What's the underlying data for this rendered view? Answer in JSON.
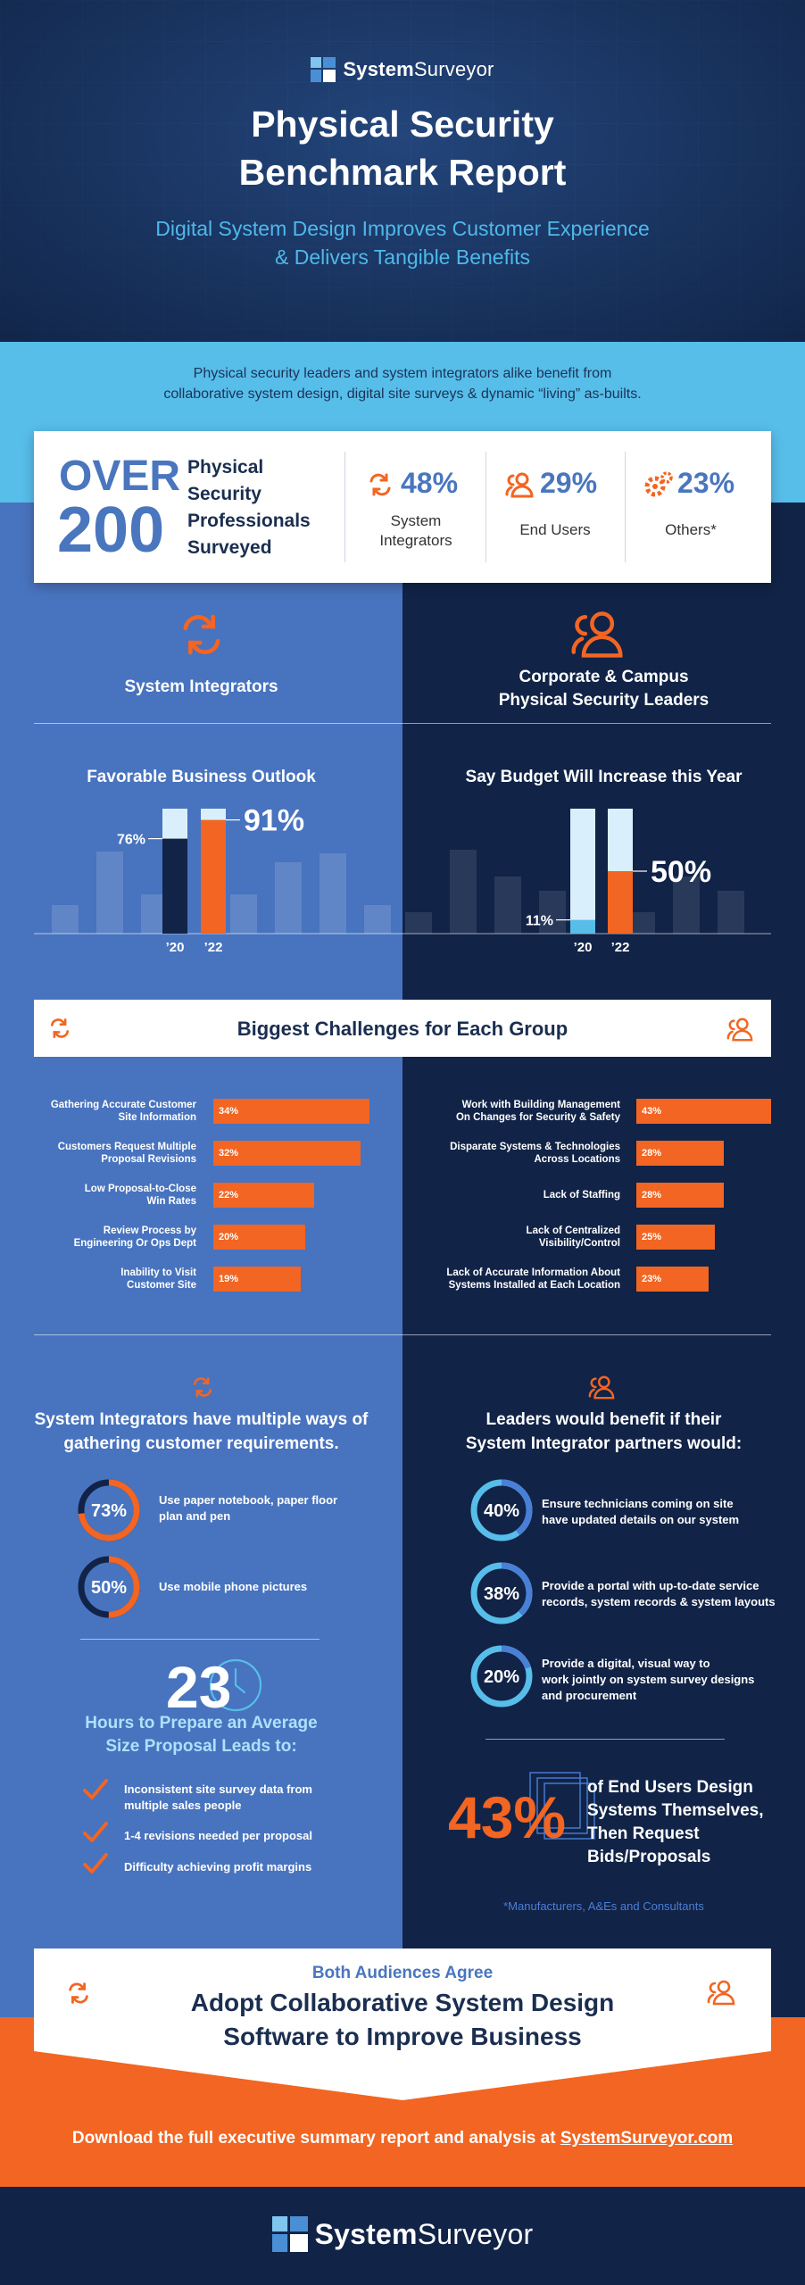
{
  "header": {
    "brand_bold": "System",
    "brand_light": "Surveyor",
    "title_line1": "Physical Security",
    "title_line2": "Benchmark Report",
    "subtitle_line1": "Digital System Design Improves Customer Experience",
    "subtitle_line2": "& Delivers Tangible Benefits"
  },
  "intro": {
    "line1": "Physical security leaders and system integrators alike benefit from",
    "line2": "collaborative system design, digital site surveys & dynamic “living” as-builts."
  },
  "stats": {
    "over": "OVER",
    "count": "200",
    "desc": [
      "Physical",
      "Security",
      "Professionals",
      "Surveyed"
    ],
    "items": [
      {
        "pct": "48%",
        "label1": "System",
        "label2": "Integrators",
        "icon": "arrows-cycle-icon"
      },
      {
        "pct": "29%",
        "label1": "End Users",
        "label2": "",
        "icon": "users-icon"
      },
      {
        "pct": "23%",
        "label1": "Others*",
        "label2": "",
        "icon": "gears-icon"
      }
    ]
  },
  "groups": {
    "left": "System Integrators",
    "right_line1": "Corporate & Campus",
    "right_line2": "Physical Security Leaders"
  },
  "colors": {
    "orange": "#f26522",
    "navy": "#112347",
    "blue": "#4873be",
    "light_blue": "#57bde9",
    "pale": "#d9f0fc"
  },
  "chart_data": [
    {
      "type": "bar",
      "title": "Favorable Business Outlook",
      "categories": [
        "’20",
        "’22"
      ],
      "values": [
        76,
        91
      ],
      "labels": [
        "76%",
        "91%"
      ],
      "ylim": [
        0,
        100
      ]
    },
    {
      "type": "bar",
      "title": "Say Budget Will Increase this Year",
      "categories": [
        "’20",
        "’22"
      ],
      "values": [
        11,
        50
      ],
      "labels": [
        "11%",
        "50%"
      ],
      "ylim": [
        0,
        100
      ]
    },
    {
      "type": "bar",
      "title": "Biggest Challenges for Each Group",
      "group": "System Integrators",
      "categories": [
        "Gathering Accurate Customer Site Information",
        "Customers Request Multiple Proposal Revisions",
        "Low Proposal-to-Close Win Rates",
        "Review Process by Engineering Or Ops Dept",
        "Inability to Visit Customer Site"
      ],
      "values": [
        34,
        32,
        22,
        20,
        19
      ]
    },
    {
      "type": "bar",
      "title": "Biggest Challenges for Each Group",
      "group": "Corporate & Campus Physical Security Leaders",
      "categories": [
        "Work with Building Management On Changes for Security & Safety",
        "Disparate Systems & Technologies Across Locations",
        "Lack of Staffing",
        "Lack of Centralized Visibility/Control",
        "Lack of Accurate Information About Systems Installed at Each Location"
      ],
      "values": [
        43,
        28,
        28,
        25,
        23
      ]
    }
  ],
  "challenges": {
    "title": "Biggest Challenges for Each Group",
    "left": [
      {
        "l1": "Gathering Accurate Customer",
        "l2": "Site Information",
        "v": "34%"
      },
      {
        "l1": "Customers Request Multiple",
        "l2": "Proposal Revisions",
        "v": "32%"
      },
      {
        "l1": "Low Proposal-to-Close",
        "l2": "Win Rates",
        "v": "22%"
      },
      {
        "l1": "Review Process by",
        "l2": "Engineering Or Ops Dept",
        "v": "20%"
      },
      {
        "l1": "Inability to Visit",
        "l2": "Customer Site",
        "v": "19%"
      }
    ],
    "right": [
      {
        "l1": "Work with Building Management",
        "l2": "On Changes for Security & Safety",
        "v": "43%"
      },
      {
        "l1": "Disparate Systems & Technologies",
        "l2": "Across Locations",
        "v": "28%"
      },
      {
        "l1": "Lack of Staffing",
        "l2": "",
        "v": "28%"
      },
      {
        "l1": "Lack of Centralized",
        "l2": "Visibility/Control",
        "v": "25%"
      },
      {
        "l1": "Lack of Accurate Information About",
        "l2": "Systems Installed at Each Location",
        "v": "23%"
      }
    ]
  },
  "requirements": {
    "left_title1": "System Integrators have multiple ways of",
    "left_title2": "gathering customer requirements.",
    "left_items": [
      {
        "pct": "73%",
        "value": 73,
        "l1": "Use paper notebook, paper floor",
        "l2": "plan and pen"
      },
      {
        "pct": "50%",
        "value": 50,
        "l1": "Use mobile phone pictures",
        "l2": ""
      }
    ],
    "right_title1": "Leaders would benefit if their",
    "right_title2": "System Integrator partners would:",
    "right_items": [
      {
        "pct": "40%",
        "value": 40,
        "l1": "Ensure technicians coming on site",
        "l2": "have updated details on our system",
        "l3": ""
      },
      {
        "pct": "38%",
        "value": 38,
        "l1": "Provide a portal with up-to-date service",
        "l2": "records, system records & system layouts",
        "l3": ""
      },
      {
        "pct": "20%",
        "value": 20,
        "l1": "Provide a digital, visual way to",
        "l2": "work jointly on system survey designs",
        "l3": "and procurement"
      }
    ]
  },
  "hours": {
    "value": "23",
    "line1": "Hours to Prepare an Average",
    "line2": "Size Proposal Leads to:",
    "checks": [
      {
        "l1": "Inconsistent site survey data from",
        "l2": "multiple sales people"
      },
      {
        "l1": "1-4 revisions needed per proposal",
        "l2": ""
      },
      {
        "l1": "Difficulty achieving profit margins",
        "l2": ""
      }
    ]
  },
  "endusers": {
    "pct": "43%",
    "lines": [
      "of End Users Design",
      "Systems Themselves,",
      "Then Request",
      "Bids/Proposals"
    ],
    "footnote": "*Manufacturers, A&Es and Consultants"
  },
  "agree": {
    "sub": "Both Audiences Agree",
    "line1": "Adopt Collaborative System Design",
    "line2": "Software to Improve Business"
  },
  "download": {
    "text": "Download the full executive summary report and analysis at ",
    "link": "SystemSurveyor.com"
  }
}
